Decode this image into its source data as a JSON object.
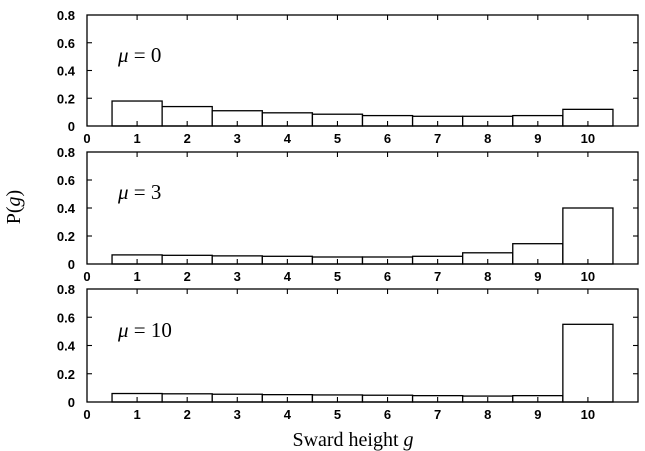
{
  "chart_data": {
    "type": "bar",
    "xlabel": {
      "text": "Sward height ",
      "var": "g"
    },
    "ylabel": {
      "text": "P(",
      "var": "g",
      "close": ")"
    },
    "categories": [
      "1",
      "2",
      "3",
      "4",
      "5",
      "6",
      "7",
      "8",
      "9",
      "10"
    ],
    "x_ticks": [
      "0",
      "1",
      "2",
      "3",
      "4",
      "5",
      "6",
      "7",
      "8",
      "9",
      "10"
    ],
    "y_ticks": [
      "0",
      "0.2",
      "0.4",
      "0.6",
      "0.8"
    ],
    "ylim": [
      0,
      0.8
    ],
    "xlim": [
      0,
      11
    ],
    "panels": [
      {
        "annotation": {
          "symbol": "μ",
          "text": " = 0"
        },
        "values": [
          0.18,
          0.14,
          0.11,
          0.095,
          0.085,
          0.075,
          0.07,
          0.07,
          0.075,
          0.12
        ]
      },
      {
        "annotation": {
          "symbol": "μ",
          "text": " = 3"
        },
        "values": [
          0.065,
          0.062,
          0.058,
          0.055,
          0.05,
          0.05,
          0.055,
          0.08,
          0.145,
          0.4
        ]
      },
      {
        "annotation": {
          "symbol": "μ",
          "text": " = 10"
        },
        "values": [
          0.06,
          0.058,
          0.055,
          0.052,
          0.05,
          0.048,
          0.045,
          0.042,
          0.045,
          0.55
        ]
      }
    ]
  }
}
